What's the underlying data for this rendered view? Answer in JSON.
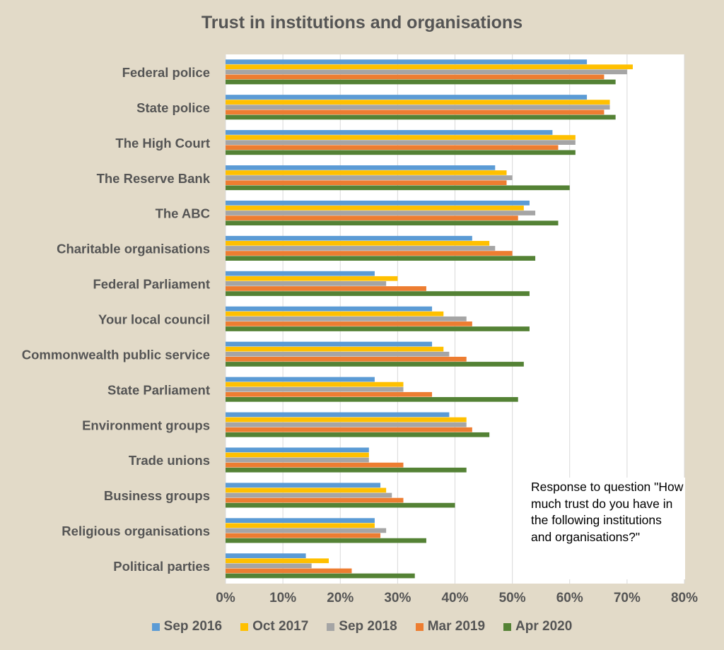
{
  "chart_data": {
    "type": "bar",
    "orientation": "horizontal",
    "title": "Trust in institutions and organisations",
    "categories": [
      "Federal police",
      "State police",
      "The High Court",
      "The Reserve Bank",
      "The ABC",
      "Charitable organisations",
      "Federal Parliament",
      "Your local council",
      "Commonwealth public service",
      "State Parliament",
      "Environment groups",
      "Trade unions",
      "Business groups",
      "Religious organisations",
      "Political parties"
    ],
    "series": [
      {
        "name": "Sep 2016",
        "color": "#5b9bd5",
        "values": [
          63,
          63,
          57,
          47,
          53,
          43,
          26,
          36,
          36,
          26,
          39,
          25,
          27,
          26,
          14
        ]
      },
      {
        "name": "Oct 2017",
        "color": "#ffc000",
        "values": [
          71,
          67,
          61,
          49,
          52,
          46,
          30,
          38,
          38,
          31,
          42,
          25,
          28,
          26,
          18
        ]
      },
      {
        "name": "Sep 2018",
        "color": "#a5a5a5",
        "values": [
          70,
          67,
          61,
          50,
          54,
          47,
          28,
          42,
          39,
          31,
          42,
          25,
          29,
          28,
          15
        ]
      },
      {
        "name": "Mar 2019",
        "color": "#ed7d31",
        "values": [
          66,
          66,
          58,
          49,
          51,
          50,
          35,
          43,
          42,
          36,
          43,
          31,
          31,
          27,
          22
        ]
      },
      {
        "name": "Apr 2020",
        "color": "#548235",
        "values": [
          68,
          68,
          61,
          60,
          58,
          54,
          53,
          53,
          52,
          51,
          46,
          42,
          40,
          35,
          33
        ]
      }
    ],
    "xlim": [
      0,
      80
    ],
    "xticks": [
      "0%",
      "10%",
      "20%",
      "30%",
      "40%",
      "50%",
      "60%",
      "70%",
      "80%"
    ],
    "xlabel": "",
    "ylabel": "",
    "grid": "vertical",
    "legend": "bottom"
  },
  "note": "Response to question \"How much trust do you have in the following institutions and organisations?\"",
  "colors": {
    "background": "#e2dac8",
    "plot_area": "#ffffff",
    "gridline": "#d9d9d9",
    "text": "#555555"
  }
}
